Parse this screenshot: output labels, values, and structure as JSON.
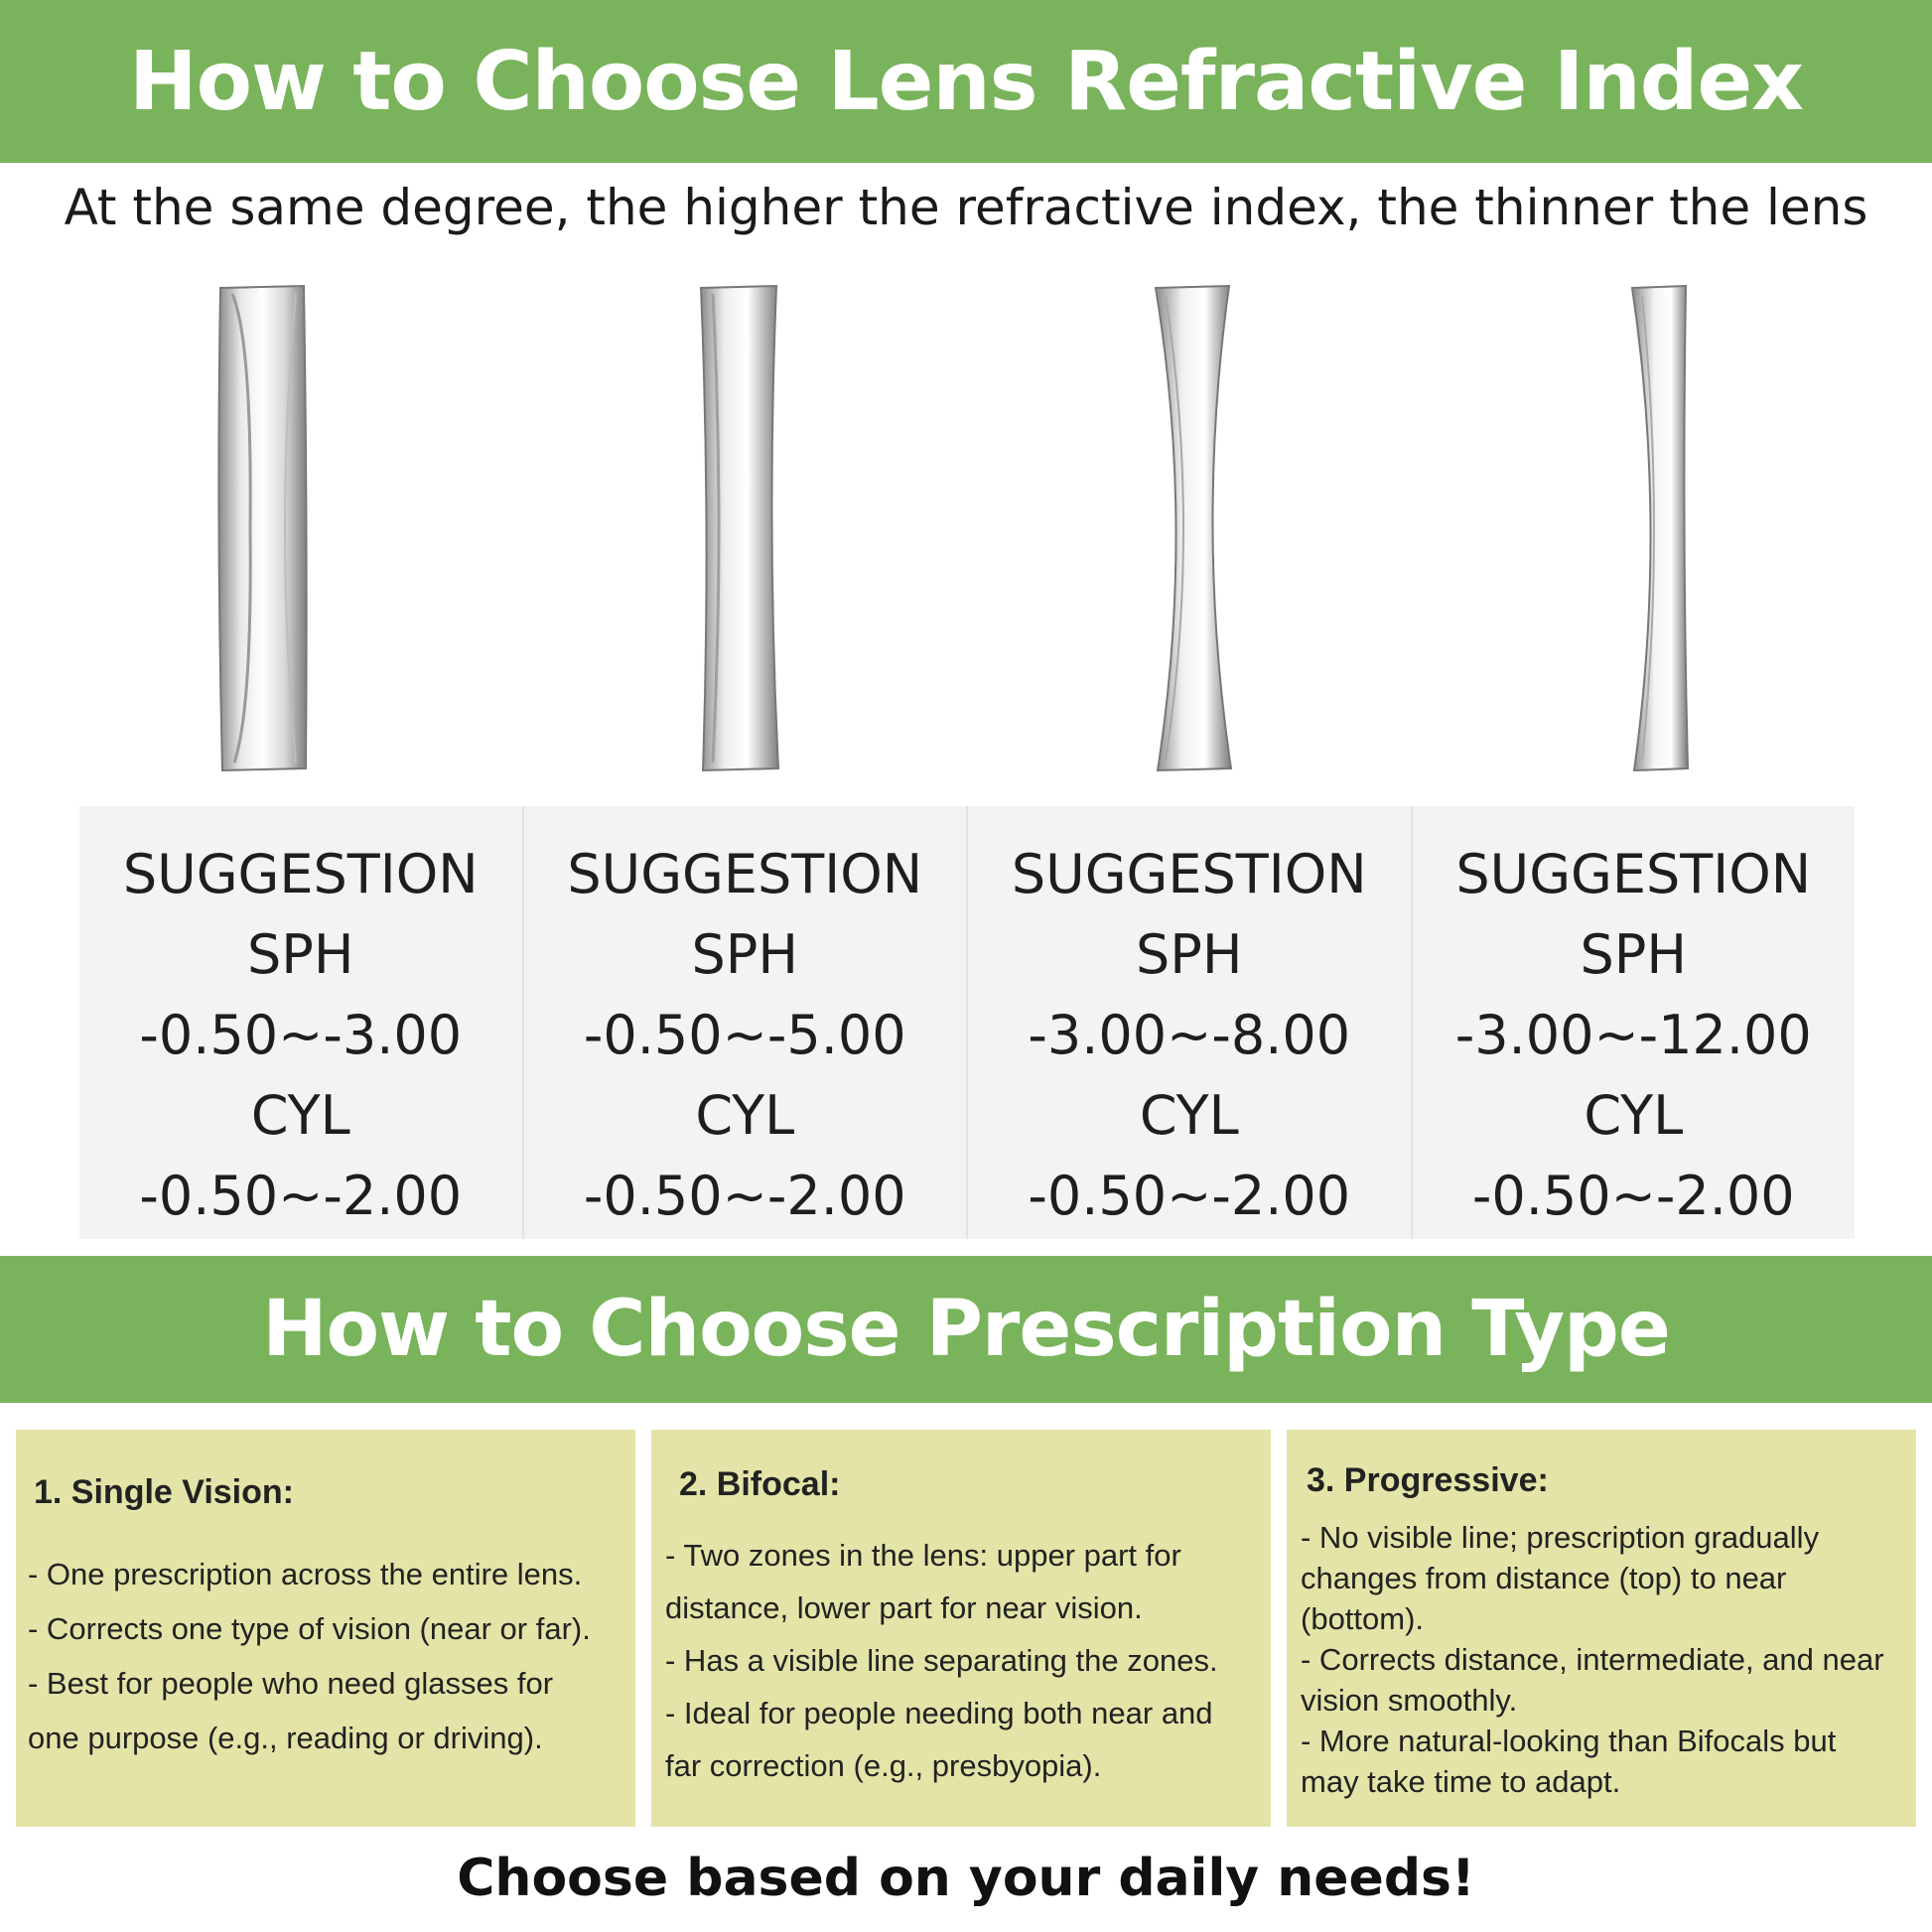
{
  "header": {
    "title": "How to Choose Lens Refractive Index"
  },
  "subtitle": "At the same degree, the higher the refractive index, the thinner the lens",
  "lenses": [
    {
      "name": "lens-thickest"
    },
    {
      "name": "lens-thick"
    },
    {
      "name": "lens-thin"
    },
    {
      "name": "lens-thinnest"
    }
  ],
  "suggestions": [
    {
      "heading": "SUGGESTION",
      "sph_label": "SPH",
      "sph_range": "-0.50~-3.00",
      "cyl_label": "CYL",
      "cyl_range": "-0.50~-2.00"
    },
    {
      "heading": "SUGGESTION",
      "sph_label": "SPH",
      "sph_range": "-0.50~-5.00",
      "cyl_label": "CYL",
      "cyl_range": "-0.50~-2.00"
    },
    {
      "heading": "SUGGESTION",
      "sph_label": "SPH",
      "sph_range": "-3.00~-8.00",
      "cyl_label": "CYL",
      "cyl_range": "-0.50~-2.00"
    },
    {
      "heading": "SUGGESTION",
      "sph_label": "SPH",
      "sph_range": "-3.00~-12.00",
      "cyl_label": "CYL",
      "cyl_range": "-0.50~-2.00"
    }
  ],
  "section2": {
    "title": "How to Choose Prescription Type"
  },
  "cards": [
    {
      "title": "1. Single Vision:",
      "body": "- One prescription across the entire lens.\n- Corrects one type of vision (near or far).\n - Best for people who need glasses for\none purpose (e.g., reading or driving)."
    },
    {
      "title": "2. Bifocal:",
      "body": " - Two zones in the lens: upper part for\ndistance, lower part for near vision.\n - Has a visible line separating the zones.\n - Ideal for people needing both near and\n  far correction (e.g., presbyopia)."
    },
    {
      "title": "3. Progressive:",
      "body": "- No visible line; prescription gradually\nchanges from distance (top) to near\n (bottom).\n- Corrects distance, intermediate, and near\n vision smoothly.\n - More natural-looking than Bifocals but\nmay take time to adapt."
    }
  ],
  "footer": {
    "text": "Choose based on your daily needs!"
  },
  "colors": {
    "banner": "#79b35b",
    "card": "#e4e4a8",
    "panel": "#f3f3f3"
  }
}
